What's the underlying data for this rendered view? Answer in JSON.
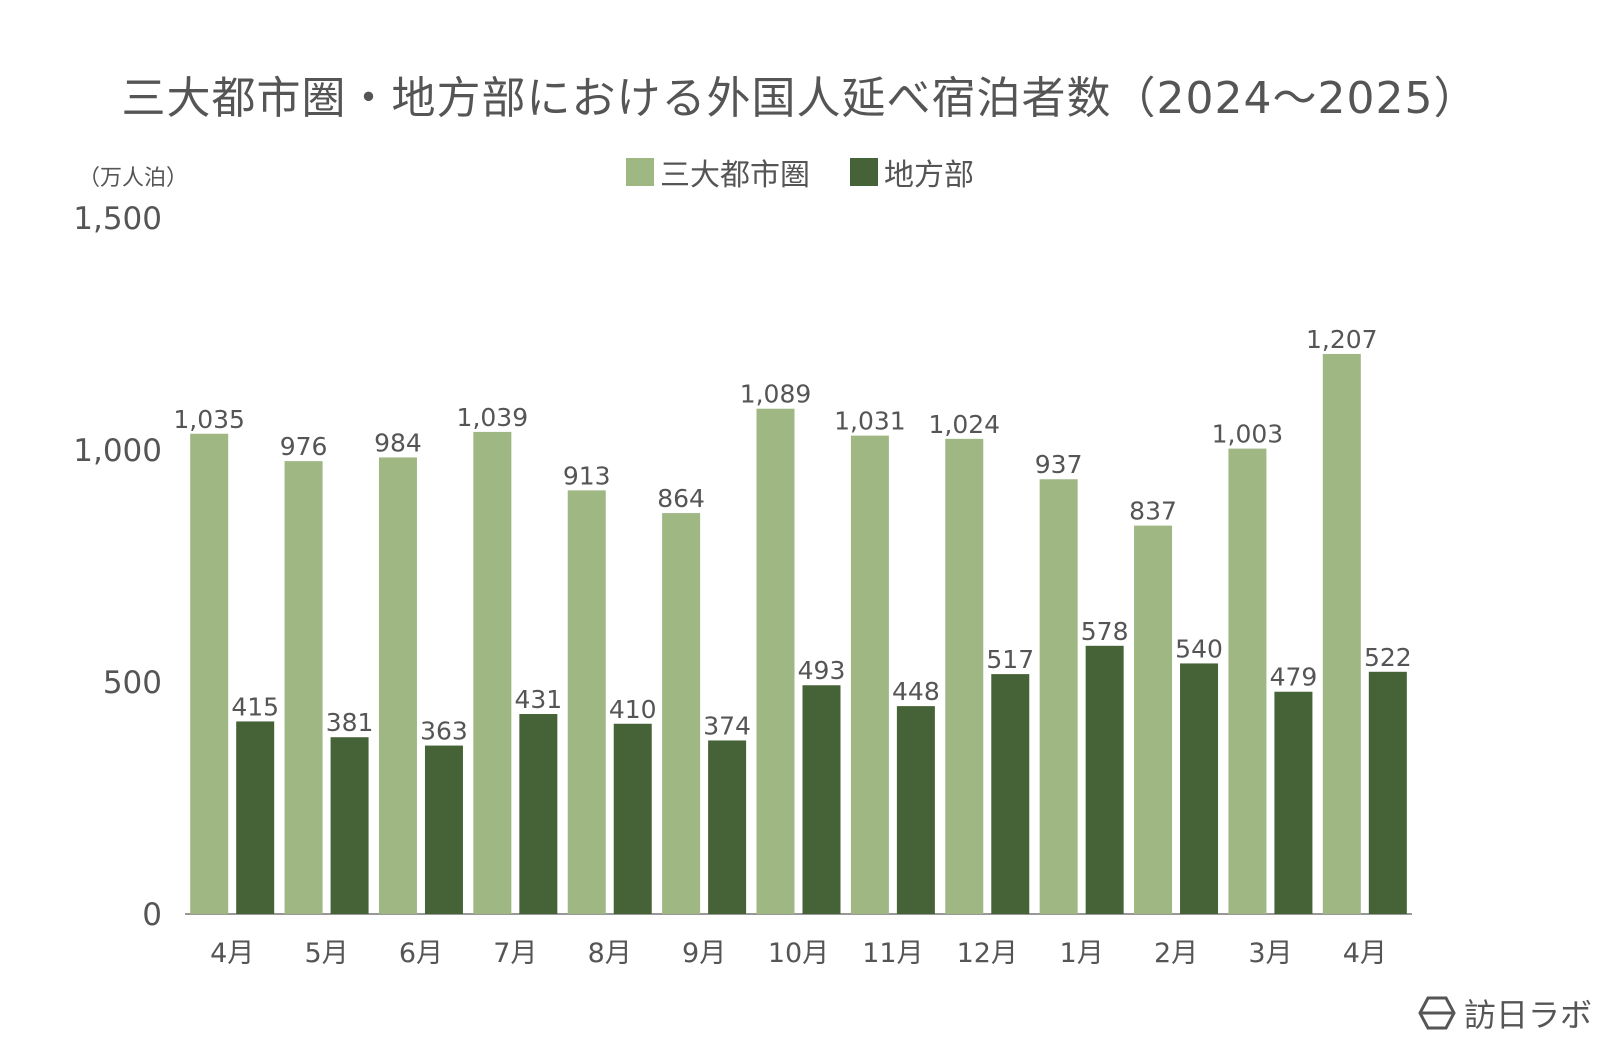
{
  "chart_data": {
    "type": "bar",
    "title": "三大都市圏・地方部における外国人延べ宿泊者数（2024〜2025）",
    "unit_label": "（万人泊）",
    "categories": [
      "4月",
      "5月",
      "6月",
      "7月",
      "8月",
      "9月",
      "10月",
      "11月",
      "12月",
      "1月",
      "2月",
      "3月",
      "4月"
    ],
    "series": [
      {
        "name": "三大都市圏",
        "color": "#9fb782",
        "values": [
          1035,
          976,
          984,
          1039,
          913,
          864,
          1089,
          1031,
          1024,
          937,
          837,
          1003,
          1207
        ]
      },
      {
        "name": "地方部",
        "color": "#466237",
        "values": [
          415,
          381,
          363,
          431,
          410,
          374,
          493,
          448,
          517,
          578,
          540,
          479,
          522
        ]
      }
    ],
    "y_ticks": [
      0,
      500,
      1000,
      1500
    ],
    "ylim": [
      0,
      1500
    ],
    "grid": false,
    "legend_position": "top-center",
    "data_labels": true
  },
  "branding": {
    "text": "訪日ラボ",
    "icon": "hexagon-logo-icon"
  }
}
